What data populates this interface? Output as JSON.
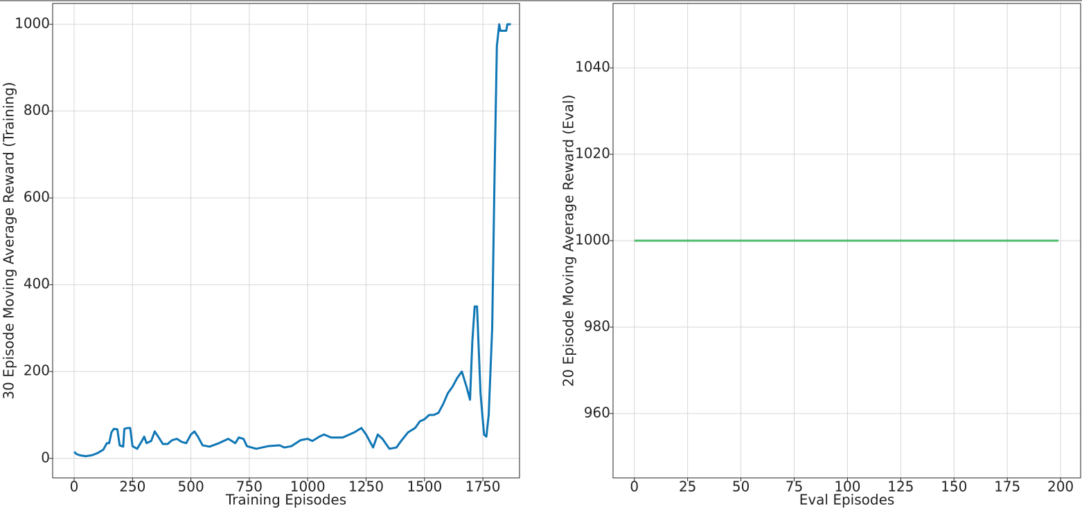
{
  "chart_data": [
    {
      "type": "line",
      "xlabel": "Training Episodes",
      "ylabel": "30 Episode Moving Average Reward (Training)",
      "color": "#0f76b5",
      "grid": true,
      "xlim": [
        -92,
        1907
      ],
      "ylim": [
        -45,
        1048
      ],
      "xticks": [
        0,
        250,
        500,
        750,
        1000,
        1250,
        1500,
        1750
      ],
      "yticks": [
        0,
        200,
        400,
        600,
        800,
        1000
      ],
      "x": [
        0,
        10,
        25,
        50,
        75,
        100,
        125,
        140,
        150,
        160,
        170,
        185,
        195,
        210,
        215,
        230,
        240,
        250,
        270,
        290,
        300,
        310,
        330,
        345,
        360,
        380,
        400,
        420,
        440,
        460,
        480,
        500,
        515,
        530,
        550,
        580,
        620,
        660,
        690,
        705,
        725,
        740,
        780,
        830,
        880,
        900,
        930,
        970,
        1000,
        1020,
        1050,
        1070,
        1100,
        1150,
        1200,
        1230,
        1250,
        1280,
        1300,
        1320,
        1350,
        1380,
        1400,
        1430,
        1460,
        1480,
        1500,
        1520,
        1540,
        1560,
        1580,
        1600,
        1620,
        1640,
        1660,
        1680,
        1695,
        1705,
        1715,
        1725,
        1740,
        1755,
        1765,
        1775,
        1790,
        1800,
        1810,
        1820,
        1825,
        1840,
        1850,
        1855,
        1870
      ],
      "values": [
        15,
        10,
        7,
        5,
        7,
        12,
        20,
        35,
        35,
        60,
        68,
        67,
        30,
        27,
        68,
        70,
        70,
        28,
        22,
        40,
        50,
        35,
        40,
        62,
        50,
        33,
        33,
        42,
        45,
        38,
        35,
        55,
        62,
        50,
        30,
        27,
        35,
        45,
        35,
        48,
        45,
        28,
        22,
        28,
        30,
        25,
        28,
        42,
        45,
        40,
        50,
        55,
        48,
        48,
        60,
        70,
        55,
        25,
        55,
        45,
        22,
        25,
        40,
        60,
        70,
        85,
        90,
        100,
        100,
        105,
        125,
        150,
        165,
        185,
        200,
        165,
        135,
        270,
        350,
        350,
        150,
        55,
        50,
        100,
        300,
        650,
        950,
        1000,
        985,
        985,
        985,
        1000,
        1000
      ]
    },
    {
      "type": "line",
      "xlabel": "Eval Episodes",
      "ylabel": "20 Episode Moving Average Reward (Eval)",
      "color": "#4cbb6c",
      "grid": true,
      "xlim": [
        -10,
        209.4
      ],
      "ylim": [
        945.1,
        1054.9
      ],
      "xticks": [
        0,
        25,
        50,
        75,
        100,
        125,
        150,
        175,
        200
      ],
      "yticks": [
        960,
        980,
        1000,
        1020,
        1040
      ],
      "x": [
        0,
        199
      ],
      "values": [
        1000,
        1000
      ]
    }
  ]
}
